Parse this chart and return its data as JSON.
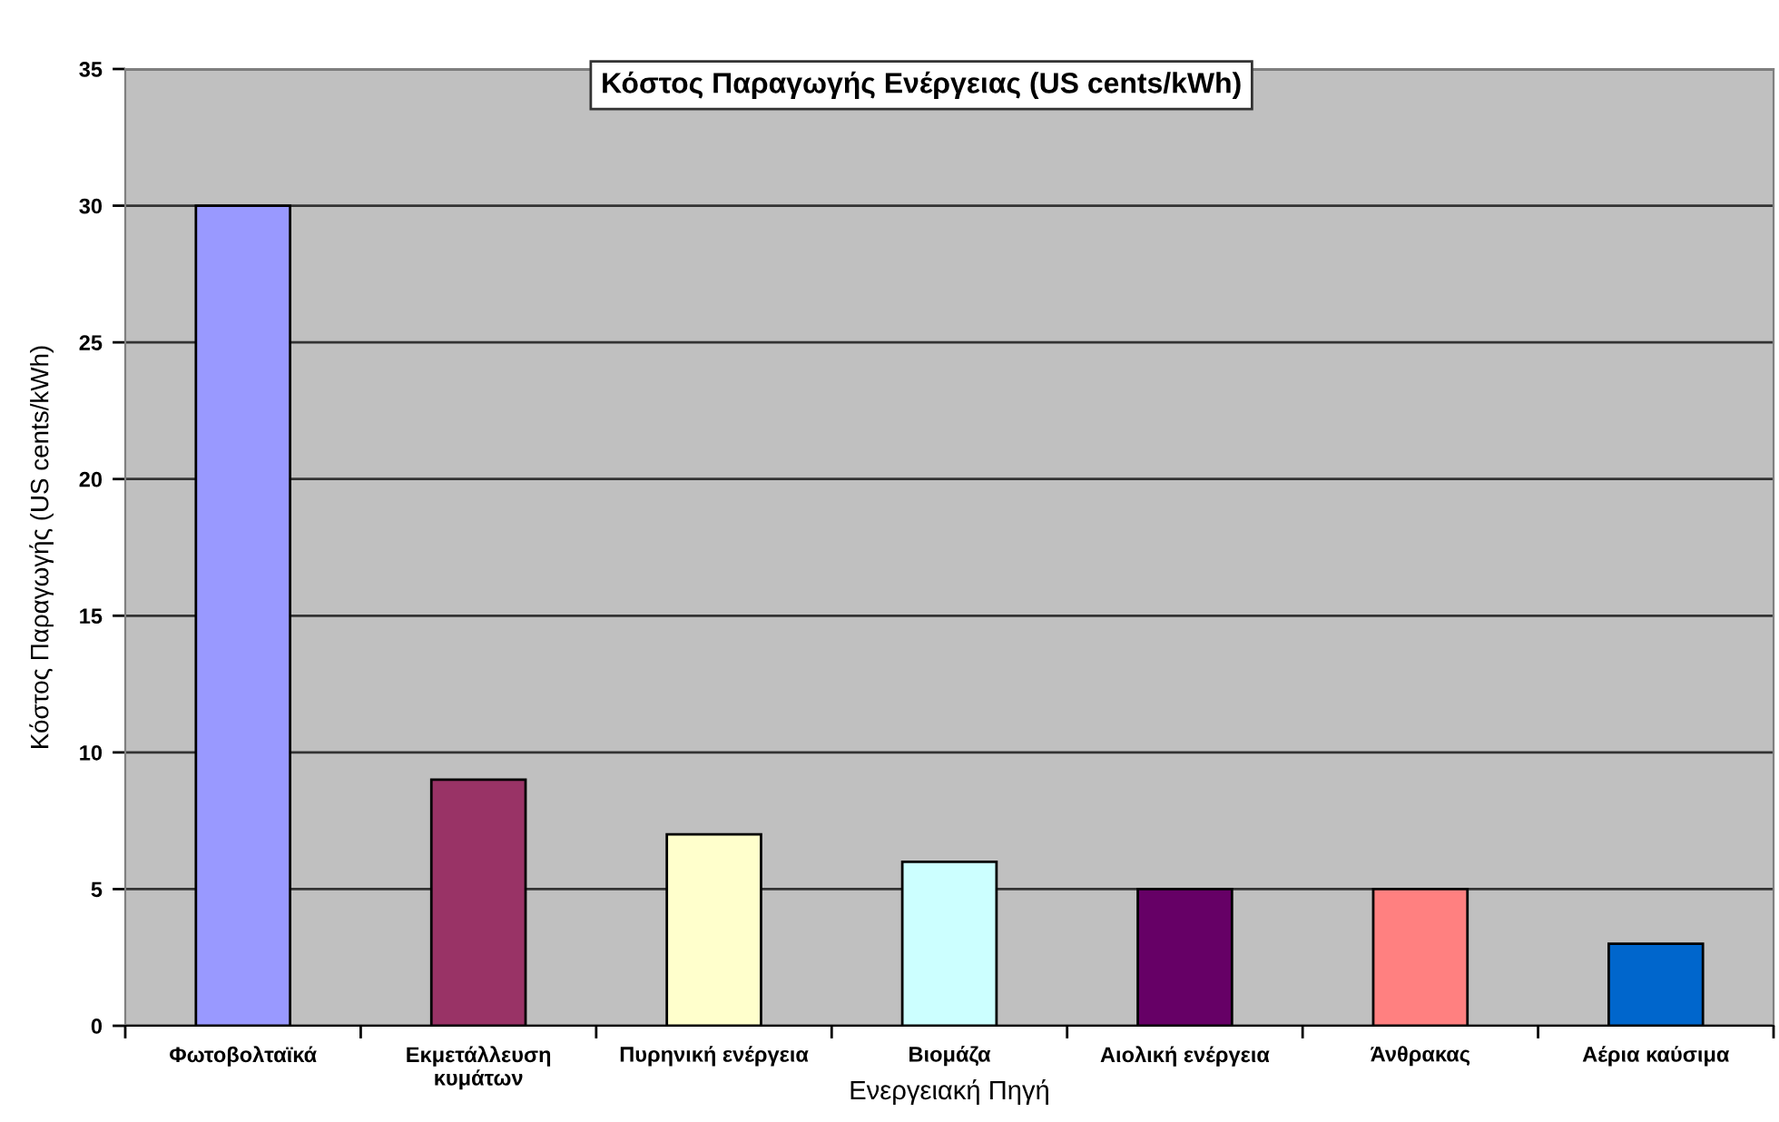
{
  "chart_data": {
    "type": "bar",
    "title": "Κόστος Παραγωγής Ενέργειας (US cents/kWh)",
    "xlabel": "Ενεργειακή Πηγή",
    "ylabel": "Κόστος Παραγωγής (US cents/kWh)",
    "categories": [
      "Φωτοβολταϊκά",
      "Εκμετάλλευση\nκυμάτων",
      "Πυρηνική ενέργεια",
      "Βιομάζα",
      "Αιολική ενέργεια",
      "Άνθρακας",
      "Αέρια καύσιμα"
    ],
    "values": [
      30,
      9,
      7,
      6,
      5,
      5,
      3
    ],
    "colors": [
      "#9999ff",
      "#993366",
      "#ffffcc",
      "#ccffff",
      "#660066",
      "#ff8080",
      "#0066cc"
    ],
    "ylim": [
      0,
      35
    ],
    "yticks": [
      0,
      5,
      10,
      15,
      20,
      25,
      30,
      35
    ],
    "grid": "y",
    "legend": false
  }
}
